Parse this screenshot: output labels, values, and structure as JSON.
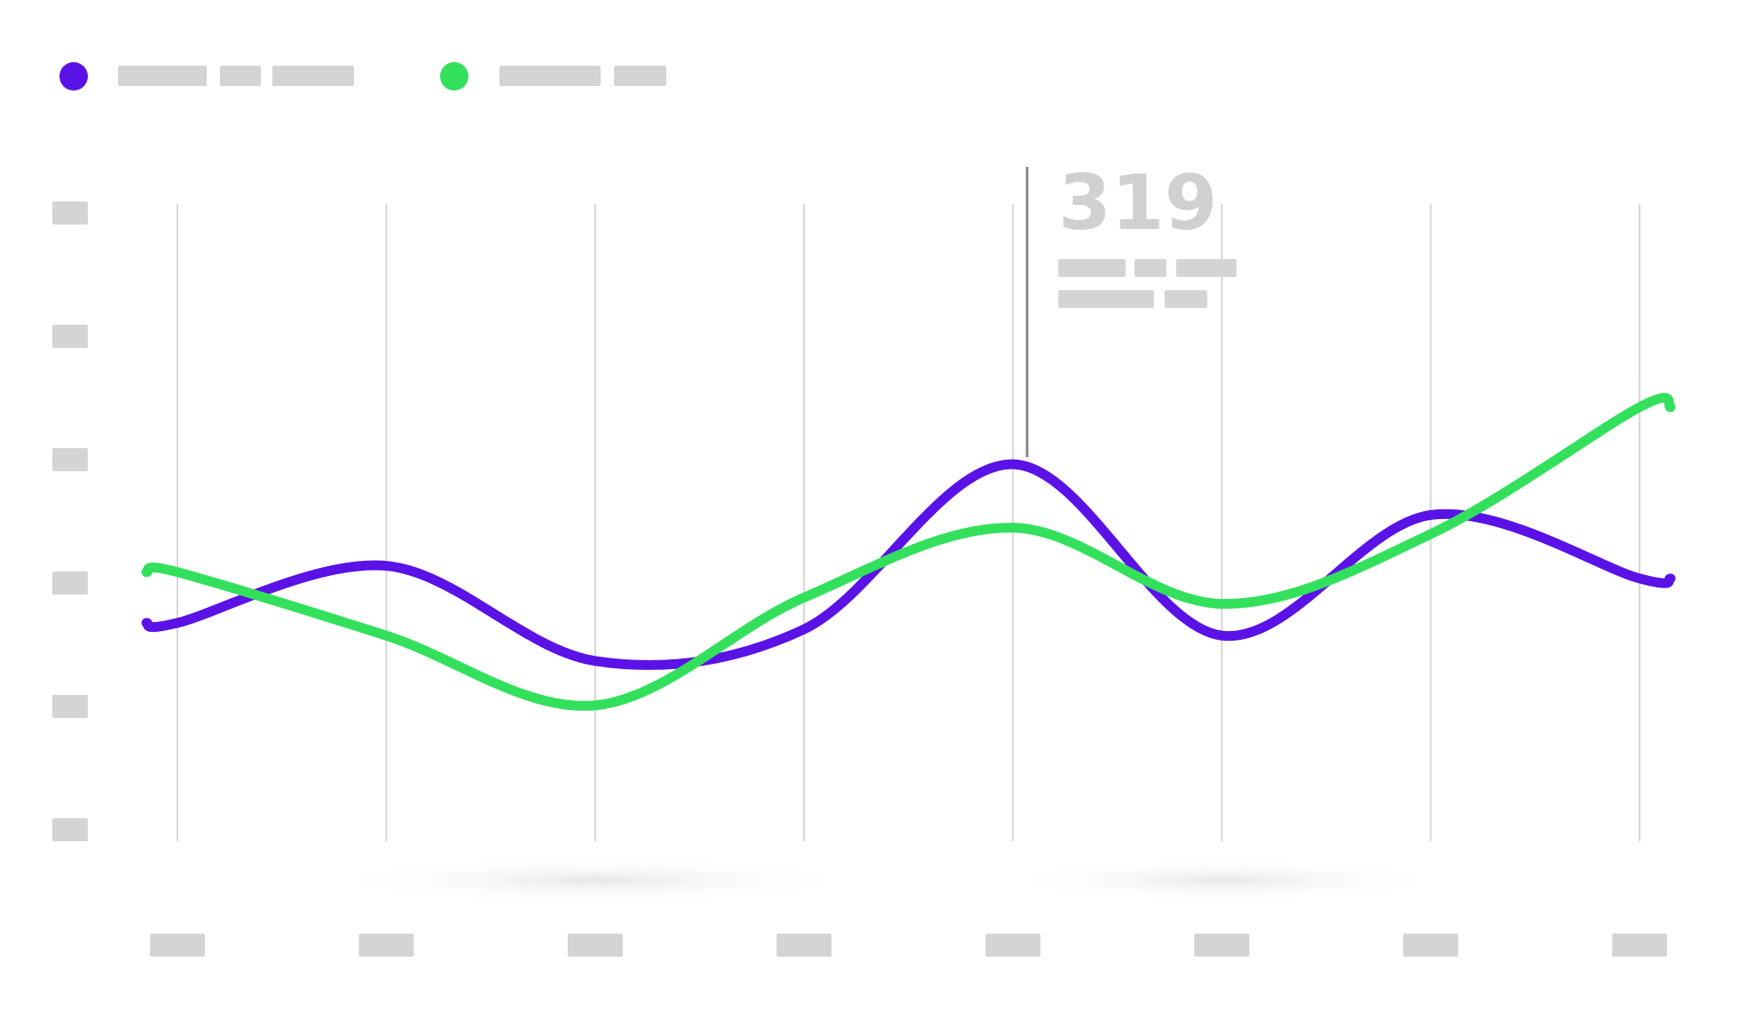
{
  "chart_data": {
    "type": "line",
    "categories": [
      "",
      "",
      "",
      "",
      "",
      "",
      "",
      ""
    ],
    "series": [
      {
        "color": "#5a12e6",
        "values": [
          57.0,
          61.5,
          54.0,
          56.5,
          69.5,
          56.0,
          65.5,
          60.5
        ]
      },
      {
        "color": "#33e05c",
        "values": [
          61.0,
          56.0,
          50.5,
          59.0,
          64.5,
          58.5,
          64.0,
          74.0
        ]
      }
    ],
    "ylim": [
      40,
      90
    ],
    "grid": {
      "vertical": true,
      "horizontal": false
    },
    "legend": {
      "position": "top-left"
    },
    "callout": {
      "value": "319",
      "category_index": 4,
      "series_index": 0
    }
  }
}
